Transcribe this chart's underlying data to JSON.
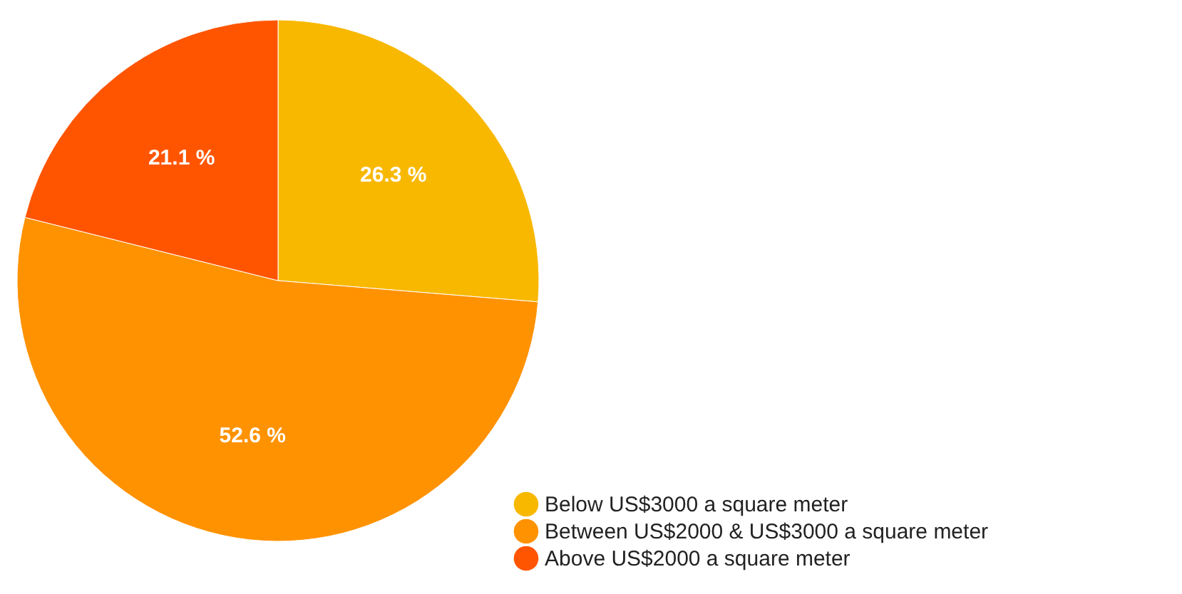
{
  "chart_data": {
    "type": "pie",
    "categories": [
      "Below US$3000 a square meter",
      "Between US$2000 & US$3000 a square meter",
      "Above US$2000 a square meter"
    ],
    "values": [
      26.3,
      52.6,
      21.1
    ],
    "colors": [
      "#f8b800",
      "#ff9200",
      "#ff5500"
    ],
    "value_labels": [
      "26.3 %",
      "52.6 %",
      "21.1 %"
    ],
    "legend": "bottom right"
  }
}
